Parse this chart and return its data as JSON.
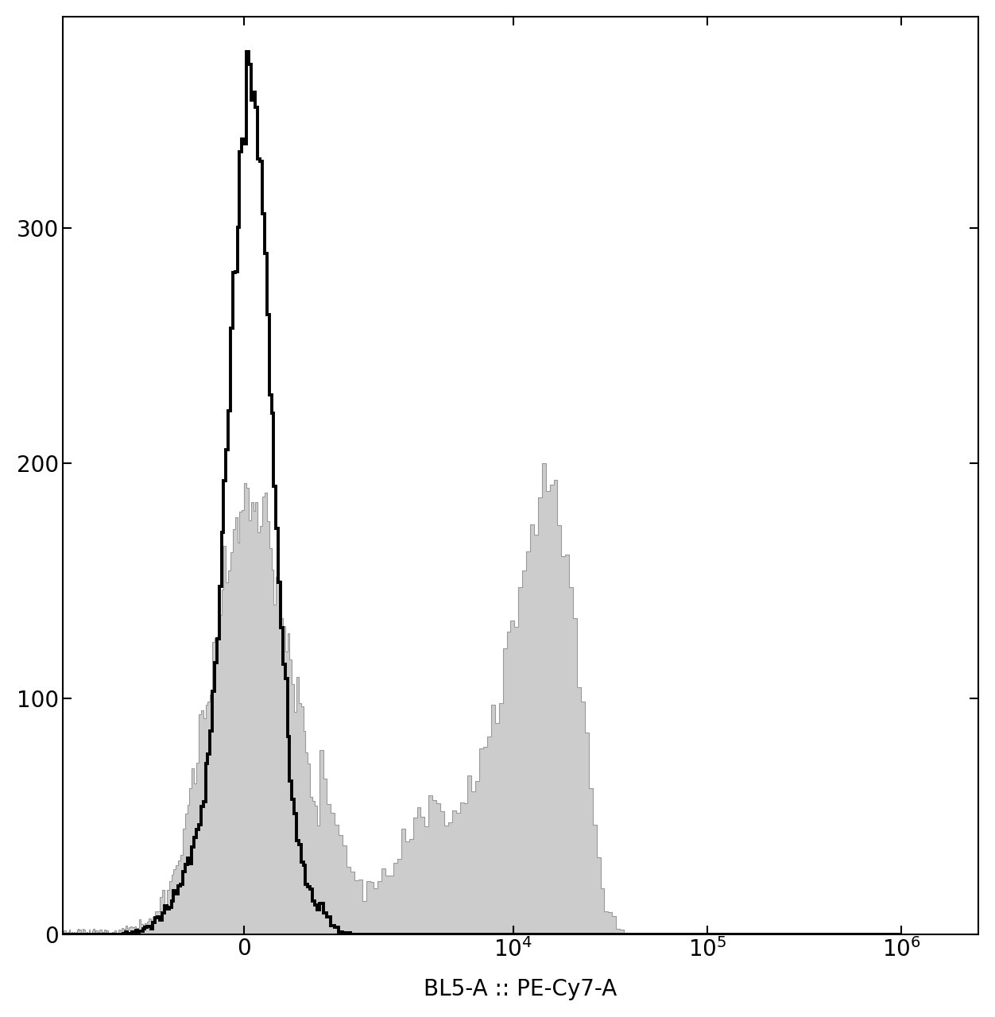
{
  "xlabel": "BL5-A :: PE-Cy7-A",
  "ylim": [
    0,
    390
  ],
  "yticks": [
    0,
    100,
    200,
    300
  ],
  "background_color": "#ffffff",
  "unstained_color": "#000000",
  "stained_fill_color": "#cccccc",
  "stained_edge_color": "#999999",
  "linewidth_unstained": 2.8,
  "linewidth_stained": 0.8,
  "xlabel_fontsize": 20,
  "tick_fontsize": 20,
  "linthresh": 1000,
  "linscale": 0.35
}
